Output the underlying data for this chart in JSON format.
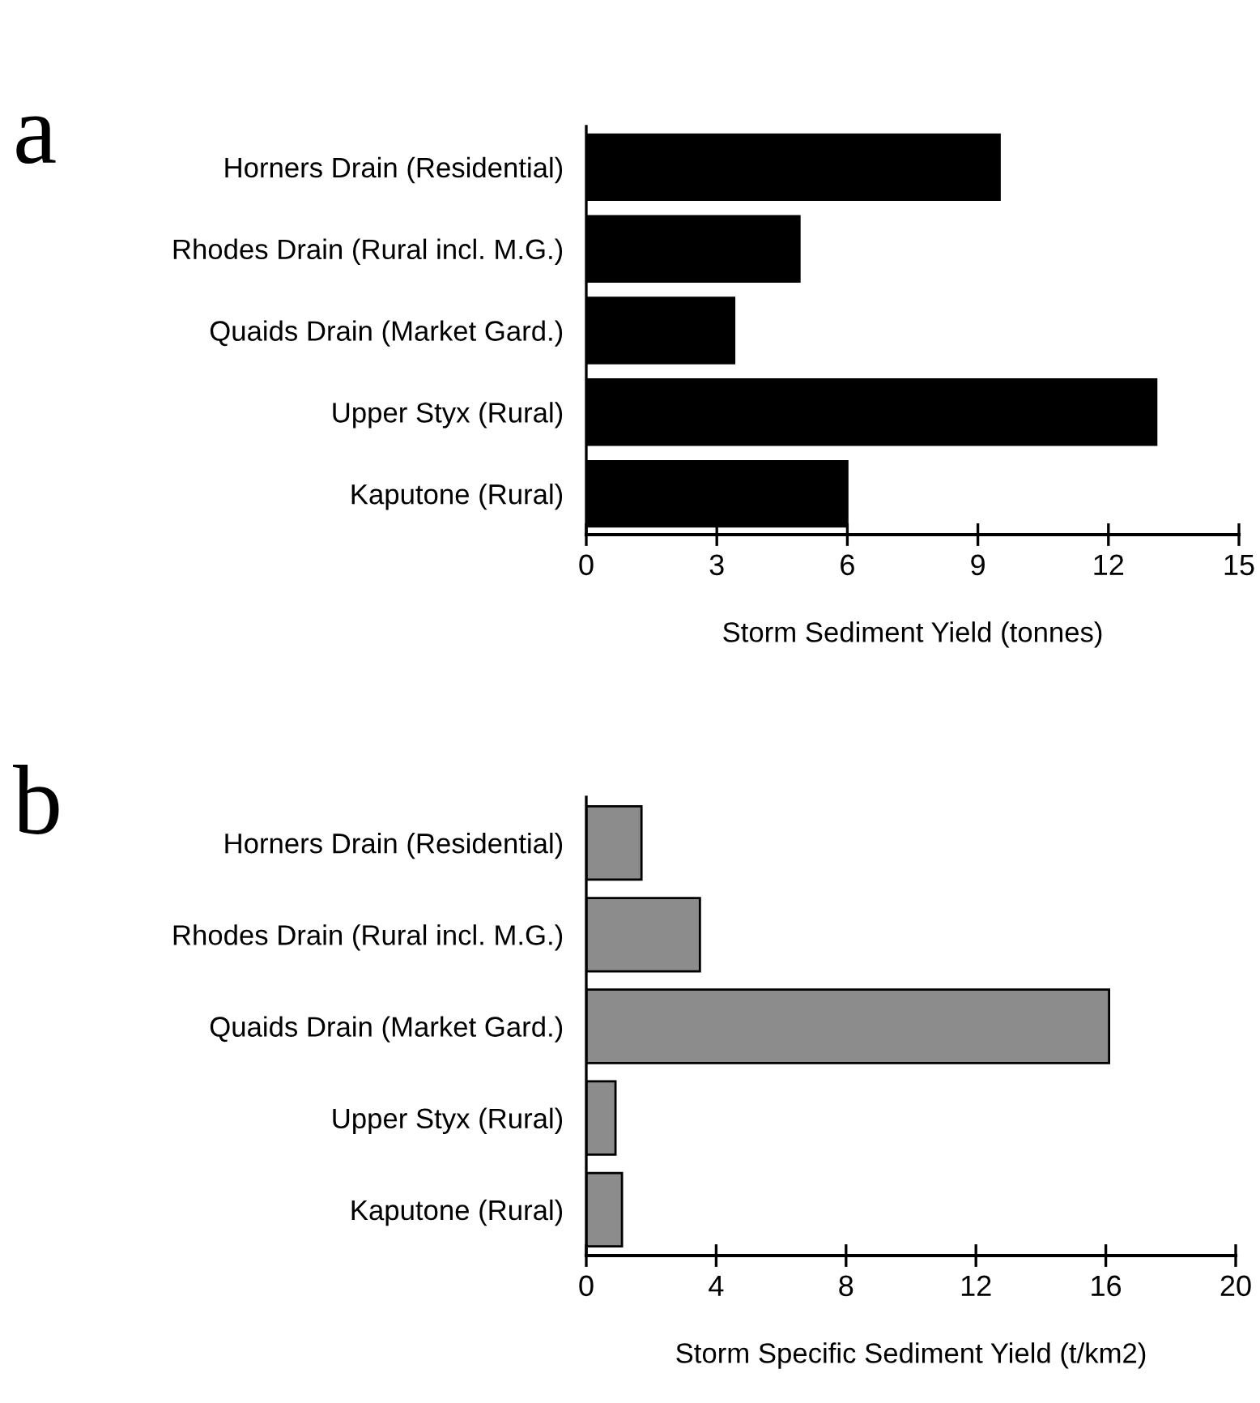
{
  "chart_data": [
    {
      "type": "bar",
      "orientation": "horizontal",
      "annotations": [
        "a"
      ],
      "xlabel": "Storm Sediment Yield (tonnes)",
      "categories": [
        "Horners Drain (Residential)",
        "Rhodes Drain (Rural incl. M.G.)",
        "Quaids Drain (Market Gard.)",
        "Upper Styx (Rural)",
        "Kaputone (Rural)"
      ],
      "values": [
        9.5,
        4.9,
        3.4,
        13.1,
        6.0
      ],
      "color": "#000000",
      "xlim": [
        0,
        15
      ],
      "xticks": [
        0,
        3,
        6,
        9,
        12,
        15
      ],
      "grid": false
    },
    {
      "type": "bar",
      "orientation": "horizontal",
      "annotations": [
        "b"
      ],
      "xlabel": "Storm Specific Sediment Yield (t/km2)",
      "categories": [
        "Horners Drain (Residential)",
        "Rhodes Drain (Rural incl. M.G.)",
        "Quaids Drain (Market Gard.)",
        "Upper Styx (Rural)",
        "Kaputone (Rural)"
      ],
      "values": [
        1.7,
        3.5,
        16.1,
        0.9,
        1.1
      ],
      "color": "#8c8c8c",
      "xlim": [
        0,
        20
      ],
      "xticks": [
        0,
        4,
        8,
        12,
        16,
        20
      ],
      "grid": false
    }
  ]
}
